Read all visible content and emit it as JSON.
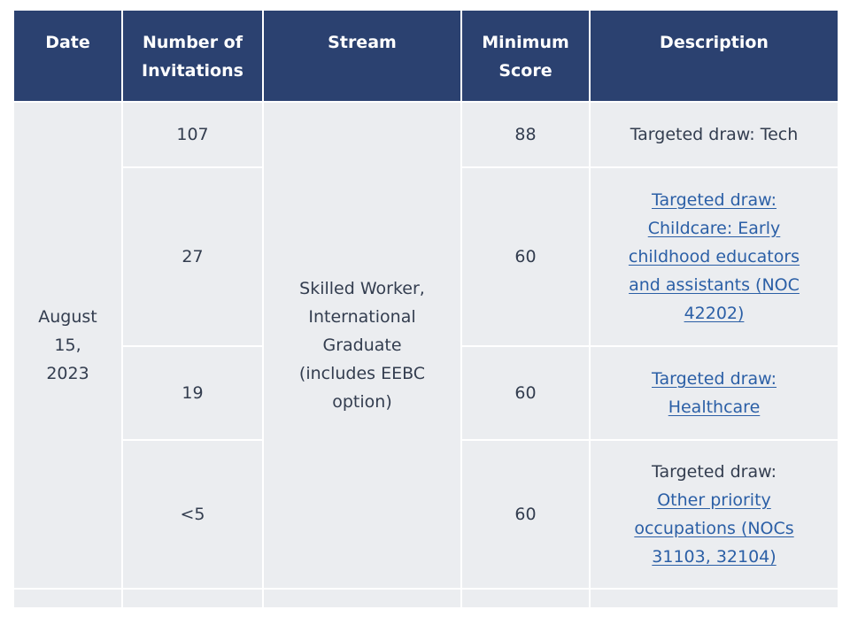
{
  "table": {
    "headers": {
      "date": "Date",
      "number": "Number of Invitations",
      "stream": "Stream",
      "score": "Minimum Score",
      "description": "Description"
    },
    "date_cell": "August 15, 2023",
    "stream_cell": "Skilled Worker, International Graduate (includes EEBC option)",
    "rows": [
      {
        "invitations": "107",
        "score": "88",
        "description_text": "Targeted draw: Tech",
        "description_link": ""
      },
      {
        "invitations": "27",
        "score": "60",
        "description_text": "",
        "description_link": "Targeted draw: Childcare: Early childhood educators and assistants (NOC 42202)"
      },
      {
        "invitations": "19",
        "score": "60",
        "description_text": "",
        "description_link": "Targeted draw: Healthcare"
      },
      {
        "invitations": "<5",
        "score": "60",
        "description_text": "Targeted draw:",
        "description_link": "Other priority occupations (NOCs 31103, 32104)"
      }
    ]
  },
  "colors": {
    "header_bg": "#2b4170",
    "cell_bg": "#ebedf0",
    "text": "#333d4f",
    "link": "#2b5fa6"
  }
}
